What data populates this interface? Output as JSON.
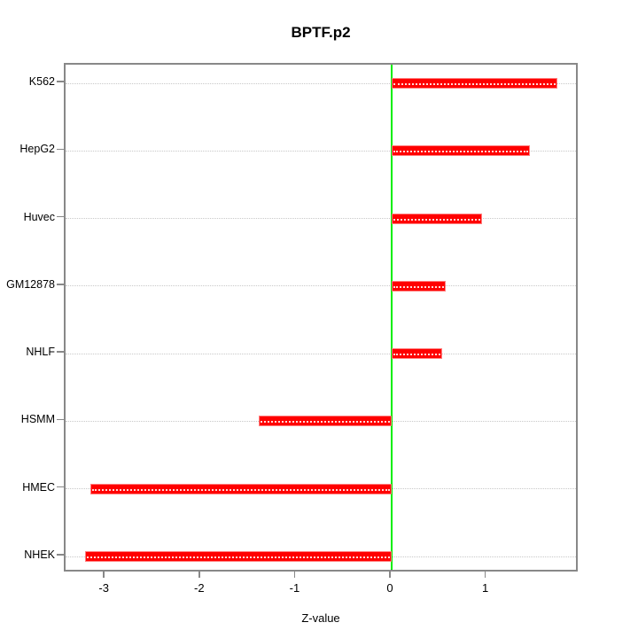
{
  "title": "BPTF.p2",
  "xlabel": "Z-value",
  "chart_data": {
    "type": "bar",
    "orientation": "horizontal",
    "title": "BPTF.p2",
    "xlabel": "Z-value",
    "ylabel": "",
    "categories": [
      "K562",
      "HepG2",
      "Huvec",
      "GM12878",
      "NHLF",
      "HSMM",
      "HMEC",
      "NHEK"
    ],
    "values": [
      1.74,
      1.45,
      0.95,
      0.57,
      0.53,
      -1.39,
      -3.16,
      -3.22
    ],
    "xlim": [
      -3.42,
      1.97
    ],
    "xticks": [
      -3,
      -2,
      -1,
      0,
      1
    ],
    "grid": true,
    "legend": "none",
    "bar_color": "#ff0000",
    "zero_line_color": "#00ee00",
    "grid_color": "#c8c8c8",
    "frame_color": "#888888"
  }
}
